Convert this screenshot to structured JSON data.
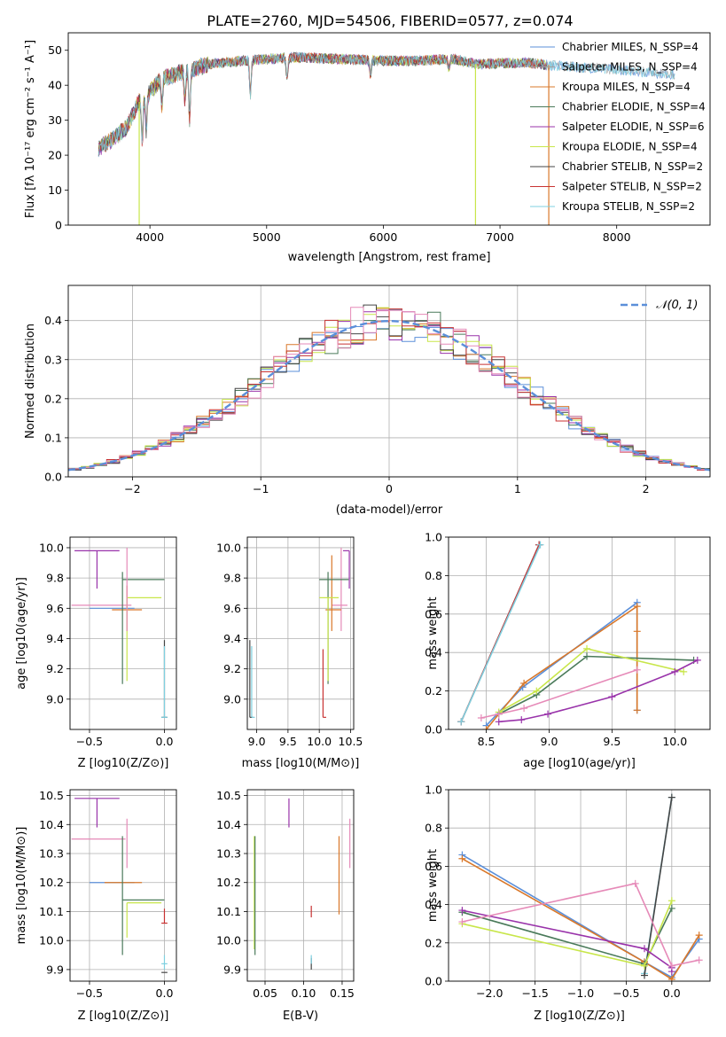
{
  "figure_title": "PLATE=2760, MJD=54506, FIBERID=0577, z=0.074",
  "colors": {
    "Chabrier MILES": "#5b8fd9",
    "Salpeter MILES": "#a0a0a0",
    "Kroupa MILES": "#d9782a",
    "Chabrier ELODIE": "#4a7a5a",
    "Salpeter ELODIE": "#9933aa",
    "Kroupa ELODIE": "#c8e64a",
    "Chabrier STELIB": "#444444",
    "Salpeter STELIB": "#c83232",
    "Kroupa STELIB": "#7fd0e0",
    "pink": "#e68ab8",
    "normal": "#5b8fd9"
  },
  "chart_data": [
    {
      "id": "spectrum",
      "type": "line",
      "title": "PLATE=2760, MJD=54506, FIBERID=0577, z=0.074",
      "xlabel": "wavelength [Angstrom, rest frame]",
      "ylabel": "Flux [fλ 10⁻¹⁷ erg cm⁻² s⁻¹ A⁻¹]",
      "xlim": [
        3300,
        8800
      ],
      "ylim": [
        0,
        55
      ],
      "xticks": [
        4000,
        5000,
        6000,
        7000,
        8000
      ],
      "yticks": [
        0,
        10,
        20,
        30,
        40,
        50
      ],
      "legend_position": "top-right",
      "series": [
        {
          "name": "Chabrier MILES, N_SSP=4"
        },
        {
          "name": "Salpeter MILES, N_SSP=4"
        },
        {
          "name": "Kroupa MILES, N_SSP=4"
        },
        {
          "name": "Chabrier ELODIE, N_SSP=4"
        },
        {
          "name": "Salpeter ELODIE, N_SSP=6"
        },
        {
          "name": "Kroupa ELODIE, N_SSP=4"
        },
        {
          "name": "Chabrier STELIB, N_SSP=2"
        },
        {
          "name": "Salpeter STELIB, N_SSP=2"
        },
        {
          "name": "Kroupa STELIB, N_SSP=2"
        }
      ],
      "continuum": {
        "x": [
          3560,
          3700,
          3800,
          3900,
          4000,
          4100,
          4300,
          4500,
          4800,
          5000,
          5300,
          5600,
          6000,
          6300,
          6600,
          6800,
          7200,
          7500,
          8000,
          8500
        ],
        "y": [
          22,
          25,
          28,
          35,
          38,
          42,
          44,
          46,
          47,
          47.5,
          48,
          47.5,
          47,
          47,
          47.5,
          46,
          46.5,
          45.5,
          44.5,
          43
        ]
      },
      "absorption_lines": [
        {
          "x": 3934,
          "depth": 12
        },
        {
          "x": 3969,
          "depth": 10
        },
        {
          "x": 4102,
          "depth": 8
        },
        {
          "x": 4300,
          "depth": 8
        },
        {
          "x": 4340,
          "depth": 14
        },
        {
          "x": 4861,
          "depth": 10
        },
        {
          "x": 5175,
          "depth": 6
        },
        {
          "x": 5890,
          "depth": 4
        },
        {
          "x": 6563,
          "depth": 3
        }
      ],
      "spikes": [
        {
          "x": 3908,
          "y": 0,
          "series": "Kroupa ELODIE"
        },
        {
          "x": 6790,
          "y": 0,
          "series": "Kroupa ELODIE"
        },
        {
          "x": 7418,
          "y": 0,
          "series": "Kroupa MILES"
        }
      ]
    },
    {
      "id": "residuals",
      "type": "line",
      "xlabel": "(data-model)/error",
      "ylabel": "Normed distribution",
      "xlim": [
        -2.5,
        2.5
      ],
      "ylim": [
        0,
        0.49
      ],
      "xticks": [
        -2,
        -1,
        0,
        1,
        2
      ],
      "xtick_labels": [
        "−2",
        "−1",
        "0",
        "1",
        "2"
      ],
      "yticks": [
        0.0,
        0.1,
        0.2,
        0.3,
        0.4
      ],
      "yticklabels": [
        "0.0",
        "0.1",
        "0.2",
        "0.3",
        "0.4"
      ],
      "grid": true,
      "legend_position": "top-right",
      "legend_label": "𝒩(0, 1)",
      "bin_width": 0.1
    },
    {
      "id": "age-vs-Z",
      "type": "scatter",
      "xlabel": "Z [log10(Z/Z⊙)]",
      "ylabel": "age  [log10(age/yr)]",
      "xlim": [
        -0.63,
        0.08
      ],
      "ylim": [
        8.8,
        10.07
      ],
      "xticks": [
        -0.5,
        0.0
      ],
      "xtick_labels": [
        "−0.5",
        "0.0"
      ],
      "yticks": [
        9.0,
        9.2,
        9.4,
        9.6,
        9.8,
        10.0
      ],
      "grid": true,
      "errorbars": [
        {
          "series": "Salpeter ELODIE",
          "x": -0.45,
          "y": 9.98,
          "xerr": [
            0.15,
            0.15
          ],
          "yerr": [
            0.25,
            0
          ]
        },
        {
          "series": "pink",
          "x": -0.42,
          "y": 9.62,
          "xerr": [
            0.2,
            0.2
          ],
          "yerr": [
            0,
            0
          ]
        },
        {
          "series": "Chabrier MILES",
          "x": -0.35,
          "y": 9.6,
          "xerr": [
            0.15,
            0.15
          ],
          "yerr": [
            0,
            0
          ]
        },
        {
          "series": "Kroupa MILES",
          "x": -0.25,
          "y": 9.59,
          "xerr": [
            0.1,
            0.1
          ],
          "yerr": [
            0.14,
            0.16
          ]
        },
        {
          "series": "Chabrier ELODIE",
          "x": -0.28,
          "y": 9.79,
          "xerr": [
            0.0,
            0.28
          ],
          "yerr": [
            0.69,
            0.05
          ]
        },
        {
          "series": "Kroupa ELODIE",
          "x": -0.25,
          "y": 9.67,
          "xerr": [
            0.0,
            0.23
          ],
          "yerr": [
            0.55,
            0
          ]
        },
        {
          "series": "pink",
          "x": -0.25,
          "y": 9.6,
          "xerr": [
            0,
            0
          ],
          "yerr": [
            0.15,
            0.4
          ]
        },
        {
          "series": "Chabrier STELIB",
          "x": 0.0,
          "y": 8.88,
          "xerr": [
            0.02,
            0.02
          ],
          "yerr": [
            0,
            0.51
          ]
        },
        {
          "series": "Kroupa STELIB",
          "x": 0.0,
          "y": 8.88,
          "xerr": [
            0.02,
            0.02
          ],
          "yerr": [
            0,
            0.47
          ]
        }
      ]
    },
    {
      "id": "age-vs-mass",
      "type": "scatter",
      "xlabel": "mass [log10(M/M⊙)]",
      "xlim": [
        8.85,
        10.55
      ],
      "ylim": [
        8.8,
        10.07
      ],
      "xticks": [
        9.0,
        9.5,
        10.0,
        10.5
      ],
      "yticks": [
        9.0,
        9.2,
        9.4,
        9.6,
        9.8,
        10.0
      ],
      "grid": true,
      "errorbars": [
        {
          "series": "Salpeter ELODIE",
          "x": 10.48,
          "y": 9.98,
          "xerr": [
            0.1,
            0
          ],
          "yerr": [
            0.25,
            0
          ]
        },
        {
          "series": "pink",
          "x": 10.35,
          "y": 9.62,
          "xerr": [
            0.15,
            0.1
          ],
          "yerr": [
            0.17,
            0.38
          ]
        },
        {
          "series": "Kroupa MILES",
          "x": 10.2,
          "y": 9.59,
          "xerr": [
            0.1,
            0.15
          ],
          "yerr": [
            0.14,
            0.36
          ]
        },
        {
          "series": "Chabrier ELODIE",
          "x": 10.14,
          "y": 9.79,
          "xerr": [
            0.14,
            0.33
          ],
          "yerr": [
            0.69,
            0.05
          ]
        },
        {
          "series": "Kroupa ELODIE",
          "x": 10.14,
          "y": 9.67,
          "xerr": [
            0.14,
            0.17
          ],
          "yerr": [
            0.55,
            0
          ]
        },
        {
          "series": "Salpeter STELIB",
          "x": 10.06,
          "y": 8.88,
          "xerr": [
            0,
            0.05
          ],
          "yerr": [
            0,
            0.45
          ]
        },
        {
          "series": "Chabrier STELIB",
          "x": 8.89,
          "y": 8.88,
          "xerr": [
            0,
            0.05
          ],
          "yerr": [
            0,
            0.51
          ]
        },
        {
          "series": "Kroupa STELIB",
          "x": 8.92,
          "y": 8.88,
          "xerr": [
            0,
            0.05
          ],
          "yerr": [
            0,
            0.47
          ]
        }
      ]
    },
    {
      "id": "weight-vs-age",
      "type": "line",
      "xlabel": "age  [log10(age/yr)]",
      "ylabel": "mass weight",
      "xlim": [
        8.2,
        10.28
      ],
      "ylim": [
        0,
        1.0
      ],
      "xticks": [
        8.5,
        9.0,
        9.5,
        10.0
      ],
      "yticks": [
        0.0,
        0.2,
        0.4,
        0.6,
        0.8,
        1.0
      ],
      "grid": true,
      "series": [
        {
          "series": "Chabrier STELIB",
          "x": [
            8.3,
            8.92
          ],
          "y": [
            0.04,
            0.96
          ]
        },
        {
          "series": "Salpeter STELIB",
          "x": [
            8.3,
            8.92
          ],
          "y": [
            0.04,
            0.96
          ]
        },
        {
          "series": "Kroupa STELIB",
          "x": [
            8.3,
            8.93
          ],
          "y": [
            0.04,
            0.96
          ]
        },
        {
          "series": "Chabrier MILES",
          "x": [
            8.5,
            8.79,
            9.7,
            9.7
          ],
          "y": [
            0.02,
            0.22,
            0.66,
            0.1
          ]
        },
        {
          "series": "Kroupa MILES",
          "x": [
            8.5,
            8.8,
            9.7,
            9.7,
            9.7
          ],
          "y": [
            0.0,
            0.24,
            0.64,
            0.51,
            0.1
          ]
        },
        {
          "series": "Chabrier ELODIE",
          "x": [
            8.6,
            8.9,
            9.3,
            10.15
          ],
          "y": [
            0.08,
            0.18,
            0.38,
            0.36
          ]
        },
        {
          "series": "Kroupa ELODIE",
          "x": [
            8.6,
            8.9,
            9.3,
            10.07
          ],
          "y": [
            0.09,
            0.2,
            0.42,
            0.3
          ]
        },
        {
          "series": "Salpeter ELODIE",
          "x": [
            8.6,
            8.78,
            8.99,
            9.5,
            10.0,
            10.18
          ],
          "y": [
            0.04,
            0.05,
            0.08,
            0.17,
            0.3,
            0.36
          ]
        },
        {
          "series": "pink",
          "x": [
            8.46,
            8.6,
            8.8,
            9.7
          ],
          "y": [
            0.06,
            0.08,
            0.11,
            0.31
          ]
        }
      ]
    },
    {
      "id": "mass-vs-Z",
      "type": "scatter",
      "xlabel": "Z [log10(Z/Z⊙)]",
      "ylabel": "mass [log10(M/M⊙)]",
      "xlim": [
        -0.63,
        0.08
      ],
      "ylim": [
        9.86,
        10.52
      ],
      "xticks": [
        -0.5,
        0.0
      ],
      "xtick_labels": [
        "−0.5",
        "0.0"
      ],
      "yticks": [
        9.9,
        10.0,
        10.1,
        10.2,
        10.3,
        10.4,
        10.5
      ],
      "grid": true,
      "errorbars": [
        {
          "series": "Salpeter ELODIE",
          "x": -0.45,
          "y": 10.49,
          "xerr": [
            0.15,
            0.15
          ],
          "yerr": [
            0.1,
            0
          ]
        },
        {
          "series": "pink",
          "x": -0.42,
          "y": 10.35,
          "xerr": [
            0.2,
            0.16
          ],
          "yerr": [
            0,
            0
          ]
        },
        {
          "series": "Chabrier MILES",
          "x": -0.35,
          "y": 10.2,
          "xerr": [
            0.15,
            0.15
          ],
          "yerr": [
            0,
            0
          ]
        },
        {
          "series": "Kroupa MILES",
          "x": -0.3,
          "y": 10.2,
          "xerr": [
            0.1,
            0.15
          ],
          "yerr": [
            0,
            0
          ]
        },
        {
          "series": "Chabrier ELODIE",
          "x": -0.28,
          "y": 10.14,
          "xerr": [
            0.0,
            0.28
          ],
          "yerr": [
            0.19,
            0.22
          ]
        },
        {
          "series": "Kroupa ELODIE",
          "x": -0.25,
          "y": 10.13,
          "xerr": [
            0.0,
            0.23
          ],
          "yerr": [
            0.12,
            0
          ]
        },
        {
          "series": "pink",
          "x": -0.25,
          "y": 10.35,
          "xerr": [
            0,
            0
          ],
          "yerr": [
            0.1,
            0.07
          ]
        },
        {
          "series": "Salpeter STELIB",
          "x": 0.0,
          "y": 10.06,
          "xerr": [
            0.02,
            0.02
          ],
          "yerr": [
            0,
            0.05
          ]
        },
        {
          "series": "Chabrier STELIB",
          "x": 0.0,
          "y": 9.89,
          "xerr": [
            0.02,
            0.02
          ],
          "yerr": [
            0,
            0
          ]
        },
        {
          "series": "Kroupa STELIB",
          "x": 0.0,
          "y": 9.92,
          "xerr": [
            0.02,
            0.02
          ],
          "yerr": [
            0.02,
            0.03
          ]
        }
      ]
    },
    {
      "id": "mass-vs-EBV",
      "type": "scatter",
      "xlabel": "E(B-V)",
      "xlim": [
        0.027,
        0.165
      ],
      "ylim": [
        9.86,
        10.52
      ],
      "xticks": [
        0.05,
        0.1,
        0.15
      ],
      "yticks": [
        9.9,
        10.0,
        10.1,
        10.2,
        10.3,
        10.4,
        10.5
      ],
      "grid": true,
      "errorbars": [
        {
          "series": "Salpeter ELODIE",
          "x": 0.081,
          "y": 10.49,
          "xerr": [
            0,
            0
          ],
          "yerr": [
            0.1,
            0
          ]
        },
        {
          "series": "Kroupa ELODIE",
          "x": 0.036,
          "y": 10.14,
          "xerr": [
            0,
            0
          ],
          "yerr": [
            0.17,
            0.22
          ]
        },
        {
          "series": "Chabrier ELODIE",
          "x": 0.037,
          "y": 10.14,
          "xerr": [
            0,
            0
          ],
          "yerr": [
            0.19,
            0.22
          ]
        },
        {
          "series": "Salpeter STELIB",
          "x": 0.11,
          "y": 10.1,
          "xerr": [
            0,
            0
          ],
          "yerr": [
            0.02,
            0.02
          ]
        },
        {
          "series": "Chabrier STELIB",
          "x": 0.11,
          "y": 9.92,
          "xerr": [
            0,
            0
          ],
          "yerr": [
            0.02,
            0.02
          ]
        },
        {
          "series": "Kroupa STELIB",
          "x": 0.11,
          "y": 9.93,
          "xerr": [
            0,
            0
          ],
          "yerr": [
            0.01,
            0.02
          ]
        },
        {
          "series": "Kroupa MILES",
          "x": 0.146,
          "y": 10.22,
          "xerr": [
            0,
            0
          ],
          "yerr": [
            0.13,
            0.14
          ]
        },
        {
          "series": "pink",
          "x": 0.16,
          "y": 10.33,
          "xerr": [
            0,
            0
          ],
          "yerr": [
            0.08,
            0.09
          ]
        }
      ]
    },
    {
      "id": "weight-vs-Z",
      "type": "line",
      "xlabel": "Z [log10(Z/Z⊙)]",
      "ylabel": "mass weight",
      "xlim": [
        -2.45,
        0.42
      ],
      "ylim": [
        0,
        1.0
      ],
      "xticks": [
        -2.0,
        -1.5,
        -1.0,
        -0.5,
        0.0
      ],
      "xtick_labels": [
        "−2.0",
        "−1.5",
        "−1.0",
        "−0.5",
        "0.0"
      ],
      "yticks": [
        0.0,
        0.2,
        0.4,
        0.6,
        0.8,
        1.0
      ],
      "grid": true,
      "series": [
        {
          "series": "Kroupa STELIB",
          "x": [
            -0.3,
            0.0
          ],
          "y": [
            0.04,
            0.96
          ]
        },
        {
          "series": "Chabrier STELIB",
          "x": [
            -0.3,
            0.0
          ],
          "y": [
            0.03,
            0.96
          ]
        },
        {
          "series": "Chabrier MILES",
          "x": [
            -2.3,
            -0.3,
            0.0,
            0.3
          ],
          "y": [
            0.66,
            0.1,
            0.02,
            0.22
          ]
        },
        {
          "series": "Kroupa MILES",
          "x": [
            -2.3,
            -0.3,
            0.0,
            0.3
          ],
          "y": [
            0.64,
            0.1,
            0.01,
            0.24
          ]
        },
        {
          "series": "Chabrier ELODIE",
          "x": [
            -2.3,
            -0.3,
            0.0
          ],
          "y": [
            0.36,
            0.09,
            0.38
          ]
        },
        {
          "series": "Kroupa ELODIE",
          "x": [
            -2.3,
            -0.3,
            0.0
          ],
          "y": [
            0.3,
            0.08,
            0.42
          ]
        },
        {
          "series": "Salpeter ELODIE",
          "x": [
            -2.3,
            -0.3,
            0.0,
            0.0
          ],
          "y": [
            0.37,
            0.17,
            0.07,
            0.05
          ]
        },
        {
          "series": "pink",
          "x": [
            -2.3,
            -0.4,
            0.0,
            0.3
          ],
          "y": [
            0.31,
            0.51,
            0.08,
            0.11
          ]
        }
      ]
    }
  ]
}
